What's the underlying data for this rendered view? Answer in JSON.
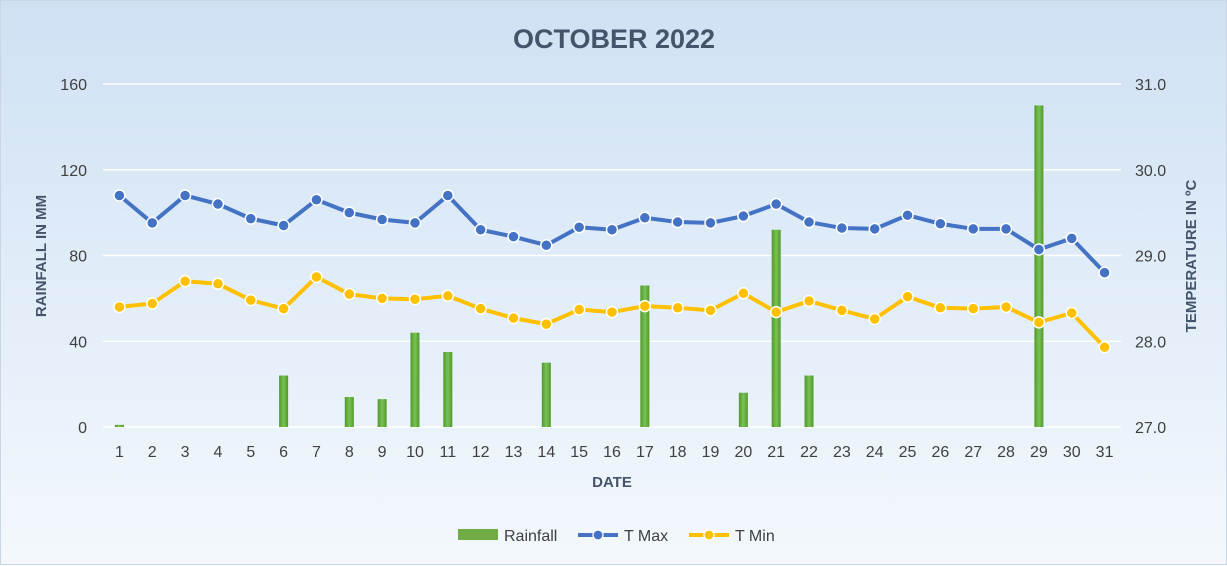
{
  "chart_data": {
    "type": "bar",
    "combo": "bar + line (secondary axis)",
    "title": "OCTOBER 2022",
    "xlabel": "DATE",
    "ylabel": "RAINFALL IN MM",
    "y2label": "TEMPERATURE IN ºC",
    "categories": [
      "1",
      "2",
      "3",
      "4",
      "5",
      "6",
      "7",
      "8",
      "9",
      "10",
      "11",
      "12",
      "13",
      "14",
      "15",
      "16",
      "17",
      "18",
      "19",
      "20",
      "21",
      "22",
      "23",
      "24",
      "25",
      "26",
      "27",
      "28",
      "29",
      "30",
      "31"
    ],
    "ylim": [
      0,
      160
    ],
    "yticks": [
      "0",
      "40",
      "80",
      "120",
      "160"
    ],
    "y2lim": [
      27.0,
      31.0
    ],
    "y2ticks": [
      "27.0",
      "28.0",
      "29.0",
      "30.0",
      "31.0"
    ],
    "grid": true,
    "legend_position": "bottom",
    "series": [
      {
        "name": "Rainfall",
        "type": "bar",
        "axis": "primary",
        "color": "#70ad47",
        "values": [
          1,
          0,
          0,
          0,
          0,
          24,
          0,
          14,
          13,
          44,
          35,
          0,
          0,
          30,
          0,
          0,
          66,
          0,
          0,
          16,
          92,
          24,
          0,
          0,
          0,
          0,
          0,
          0,
          150,
          0,
          0
        ]
      },
      {
        "name": "T Max",
        "type": "line",
        "axis": "secondary",
        "color": "#4472c4",
        "values": [
          29.7,
          29.38,
          29.7,
          29.6,
          29.43,
          29.35,
          29.65,
          29.5,
          29.42,
          29.38,
          29.7,
          29.3,
          29.22,
          29.12,
          29.33,
          29.3,
          29.44,
          29.39,
          29.38,
          29.46,
          29.6,
          29.39,
          29.32,
          29.31,
          29.47,
          29.37,
          29.31,
          29.31,
          29.07,
          29.2,
          28.8
        ]
      },
      {
        "name": "T Min",
        "type": "line",
        "axis": "secondary",
        "color": "#ffc000",
        "values": [
          28.4,
          28.44,
          28.7,
          28.67,
          28.48,
          28.38,
          28.75,
          28.55,
          28.5,
          28.49,
          28.53,
          28.38,
          28.27,
          28.2,
          28.37,
          28.34,
          28.41,
          28.39,
          28.36,
          28.56,
          28.34,
          28.47,
          28.36,
          28.26,
          28.52,
          28.39,
          28.38,
          28.4,
          28.22,
          28.33,
          27.93
        ]
      }
    ]
  }
}
